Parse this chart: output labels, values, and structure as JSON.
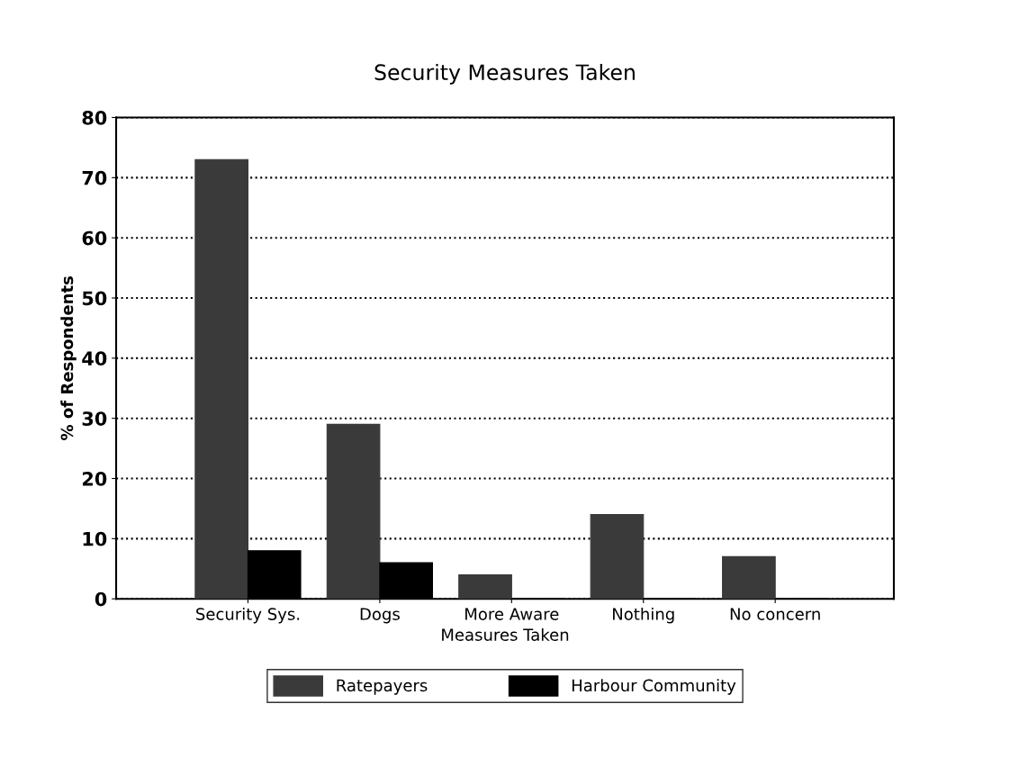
{
  "chart_data": {
    "type": "bar",
    "title": "Security Measures Taken",
    "xlabel": "Measures Taken",
    "ylabel": "% of Respondents",
    "categories": [
      "Security Sys.",
      "Dogs",
      "More Aware",
      "Nothing",
      "No concern"
    ],
    "series": [
      {
        "name": "Ratepayers",
        "color": "#3a3a3a",
        "values": [
          73,
          29,
          4,
          14,
          7
        ]
      },
      {
        "name": "Harbour Community",
        "color": "#000000",
        "values": [
          8,
          6,
          0,
          0,
          0
        ]
      }
    ],
    "ylim": [
      0,
      80
    ],
    "yticks": [
      0,
      10,
      20,
      30,
      40,
      50,
      60,
      70,
      80
    ],
    "grid": "y",
    "legend": "bottom"
  }
}
